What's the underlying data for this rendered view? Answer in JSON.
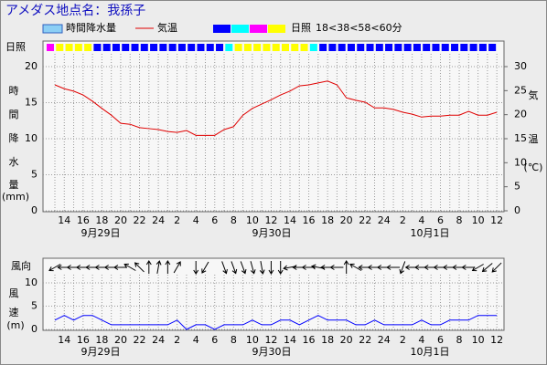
{
  "title": "アメダス地点名：我孫子",
  "chart_data": [
    {
      "type": "line",
      "categories": [
        null,
        "14",
        null,
        "16",
        null,
        "18",
        null,
        "20",
        null,
        "22",
        null,
        "24",
        null,
        "2",
        null,
        "4",
        null,
        "6",
        null,
        "8",
        null,
        "10",
        null,
        "12",
        null,
        "14",
        null,
        "16",
        null,
        "18",
        null,
        "20",
        null,
        "22",
        null,
        "24",
        null,
        "2",
        null,
        "4",
        null,
        "6",
        null,
        "8",
        null,
        "10",
        null,
        "12"
      ],
      "date_labels": [
        "9月29日",
        "9月30日",
        "10月1日"
      ],
      "series": [
        {
          "name": "時間降水量",
          "type": "bar",
          "color": "#8ccff5",
          "values": [
            0,
            0,
            0,
            0,
            0,
            0,
            0,
            0,
            0,
            0,
            0,
            0,
            0,
            0,
            0,
            0,
            0,
            0,
            0,
            0,
            0,
            0,
            0,
            0,
            0,
            0,
            0,
            0,
            0,
            0,
            0,
            0,
            0,
            0,
            0,
            0,
            0,
            0,
            0,
            0,
            0,
            0,
            0,
            0,
            0,
            0,
            0,
            0
          ]
        },
        {
          "name": "気温",
          "type": "line",
          "color": "#e00000",
          "axis": "y2",
          "values": [
            26.2,
            25.4,
            24.9,
            24.1,
            22.8,
            21.3,
            19.9,
            18.2,
            18.0,
            17.3,
            17.1,
            16.9,
            16.5,
            16.3,
            16.7,
            15.7,
            15.7,
            15.7,
            16.9,
            17.5,
            19.9,
            21.3,
            22.2,
            23.1,
            24.1,
            24.9,
            26.0,
            26.2,
            26.6,
            27.0,
            26.2,
            23.5,
            23.0,
            22.6,
            21.4,
            21.4,
            21.1,
            20.5,
            20.1,
            19.5,
            19.7,
            19.7,
            19.9,
            19.9,
            20.7,
            19.9,
            19.9,
            20.5
          ]
        }
      ],
      "sunshine": {
        "name": "日照",
        "legend_text": "18<38<58<60分",
        "thresholds": [
          18,
          38,
          58
        ],
        "colors": [
          "#0000ff",
          "#00ffff",
          "#ff00ff",
          "#ffff00"
        ],
        "values": [
          45,
          60,
          60,
          60,
          60,
          0,
          0,
          0,
          0,
          0,
          0,
          0,
          0,
          0,
          0,
          0,
          0,
          0,
          0,
          25,
          60,
          60,
          60,
          60,
          60,
          60,
          60,
          60,
          25,
          0,
          0,
          0,
          0,
          0,
          0,
          0,
          0,
          0,
          0,
          0,
          0,
          0,
          0,
          0,
          0,
          0,
          0,
          0
        ]
      },
      "y_label": [
        "時",
        "間",
        "降",
        "水",
        "量",
        "(mm)"
      ],
      "y2_label": [
        "気",
        "温",
        "(℃)"
      ],
      "ylim": [
        0,
        20
      ],
      "yticks": [
        0,
        5,
        10,
        15,
        20
      ],
      "y2lim": [
        0,
        30
      ],
      "y2ticks": [
        0,
        5,
        10,
        15,
        20,
        25,
        30
      ],
      "grid": true
    },
    {
      "type": "line",
      "categories": [
        null,
        "14",
        null,
        "16",
        null,
        "18",
        null,
        "20",
        null,
        "22",
        null,
        "24",
        null,
        "2",
        null,
        "4",
        null,
        "6",
        null,
        "8",
        null,
        "10",
        null,
        "12",
        null,
        "14",
        null,
        "16",
        null,
        "18",
        null,
        "20",
        null,
        "22",
        null,
        "24",
        null,
        "2",
        null,
        "4",
        null,
        "6",
        null,
        "8",
        null,
        "10",
        null,
        "12"
      ],
      "date_labels": [
        "9月29日",
        "9月30日",
        "10月1日"
      ],
      "series": [
        {
          "color": "#0000ff",
          "values": [
            2,
            3,
            2,
            3,
            3,
            2,
            1,
            1,
            1,
            1,
            1,
            1,
            1,
            2,
            0,
            1,
            1,
            0,
            1,
            1,
            1,
            2,
            1,
            1,
            2,
            2,
            1,
            2,
            3,
            2,
            2,
            2,
            1,
            1,
            2,
            1,
            1,
            1,
            1,
            2,
            1,
            1,
            2,
            2,
            2,
            3,
            3,
            3
          ]
        }
      ],
      "wind_direction": {
        "label": "風向",
        "color": "#000000",
        "values": [
          240,
          270,
          270,
          270,
          270,
          270,
          270,
          270,
          300,
          315,
          0,
          10,
          0,
          30,
          null,
          180,
          210,
          null,
          160,
          160,
          160,
          165,
          170,
          180,
          180,
          260,
          270,
          270,
          280,
          270,
          270,
          0,
          300,
          270,
          270,
          270,
          270,
          200,
          270,
          270,
          270,
          270,
          270,
          270,
          270,
          240,
          230,
          225
        ]
      },
      "y_label": [
        "風",
        "速",
        "(m)"
      ],
      "ylim": [
        0,
        10
      ],
      "yticks": [
        0,
        5,
        10
      ],
      "grid": true
    }
  ]
}
